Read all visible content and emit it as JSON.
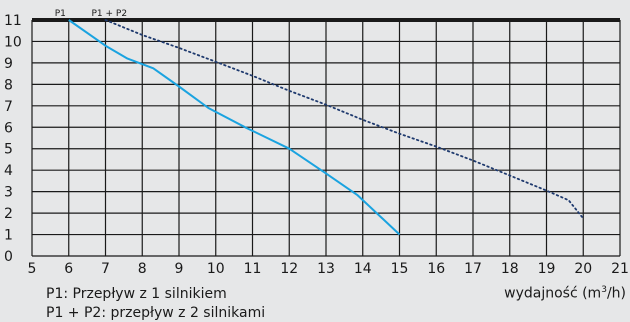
{
  "chart_data": {
    "type": "line",
    "xlim": [
      5,
      21
    ],
    "ylim": [
      0,
      11
    ],
    "x_ticks": [
      5,
      6,
      7,
      8,
      9,
      10,
      11,
      12,
      13,
      14,
      15,
      16,
      17,
      18,
      19,
      20,
      21
    ],
    "y_ticks": [
      0,
      1,
      2,
      3,
      4,
      5,
      6,
      7,
      8,
      9,
      10,
      11
    ],
    "grid": true,
    "series": [
      {
        "name": "P1",
        "style": "solid",
        "color": "#1aa3e0",
        "points": [
          [
            6,
            11
          ],
          [
            7,
            9.8
          ],
          [
            7.6,
            9.2
          ],
          [
            8.3,
            8.75
          ],
          [
            9,
            7.9
          ],
          [
            9.8,
            6.9
          ],
          [
            10.8,
            6
          ],
          [
            12,
            5
          ],
          [
            13,
            3.85
          ],
          [
            13.85,
            2.85
          ],
          [
            15,
            1
          ]
        ]
      },
      {
        "name": "P1 + P2",
        "style": "dotted",
        "color": "#1f3a6e",
        "points": [
          [
            7,
            11
          ],
          [
            8,
            10.3
          ],
          [
            9,
            9.7
          ],
          [
            10,
            9.05
          ],
          [
            11,
            8.4
          ],
          [
            12,
            7.7
          ],
          [
            13,
            7.05
          ],
          [
            14,
            6.35
          ],
          [
            15,
            5.7
          ],
          [
            16,
            5.1
          ],
          [
            17,
            4.45
          ],
          [
            18,
            3.75
          ],
          [
            19,
            3.05
          ],
          [
            19.6,
            2.6
          ],
          [
            20,
            1.75
          ]
        ]
      }
    ],
    "xlabel_main": "wydajność (m",
    "xlabel_sup": "3",
    "xlabel_end": "/h)"
  },
  "legend": {
    "p1": "P1: Przepływ z 1 silnikiem",
    "p2": "P1 + P2: przepływ z 2 silnikami"
  }
}
